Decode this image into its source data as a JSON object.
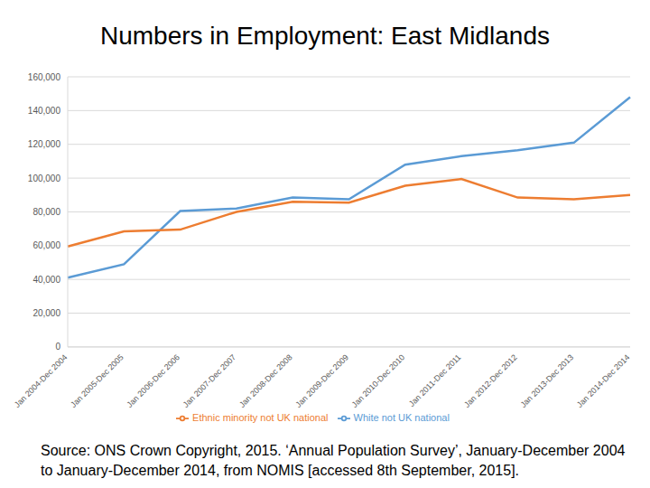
{
  "chart_data": {
    "type": "line",
    "title": "Numbers in Employment: East Midlands",
    "source": "Source: ONS Crown Copyright, 2015. ‘Annual Population Survey’, January-December 2004 to January-December 2014, from NOMIS [accessed 8th September, 2015].",
    "categories": [
      "Jan 2004-Dec 2004",
      "Jan 2005-Dec 2005",
      "Jan 2006-Dec 2006",
      "Jan 2007-Dec 2007",
      "Jan 2008-Dec 2008",
      "Jan 2009-Dec 2009",
      "Jan 2010-Dec 2010",
      "Jan 2011-Dec 2011",
      "Jan 2012-Dec 2012",
      "Jan 2013-Dec 2013",
      "Jan 2014-Dec 2014"
    ],
    "series": [
      {
        "name": "White not UK national",
        "color": "#5b9bd5",
        "values": [
          41000,
          49000,
          80500,
          82000,
          88500,
          87500,
          108000,
          113000,
          116500,
          121000,
          148000
        ]
      },
      {
        "name": "Ethnic minority not UK national",
        "color": "#ed7d31",
        "values": [
          59500,
          68500,
          69500,
          80000,
          86000,
          85500,
          95500,
          99500,
          88500,
          87500,
          90000
        ]
      }
    ],
    "ylim": [
      0,
      160000
    ],
    "yticks": [
      0,
      {
        "value": 20000,
        "label": "20,000"
      },
      {
        "value": 40000,
        "label": "40,000"
      },
      {
        "value": 60000,
        "label": "60,000"
      },
      {
        "value": 80000,
        "label": "80,000"
      },
      {
        "value": 100000,
        "label": "100,000"
      },
      {
        "value": 120000,
        "label": "120,000"
      },
      {
        "value": 140000,
        "label": "140,000"
      },
      {
        "value": 160000,
        "label": "160,000"
      }
    ],
    "grid": true,
    "legend": "bottom"
  }
}
